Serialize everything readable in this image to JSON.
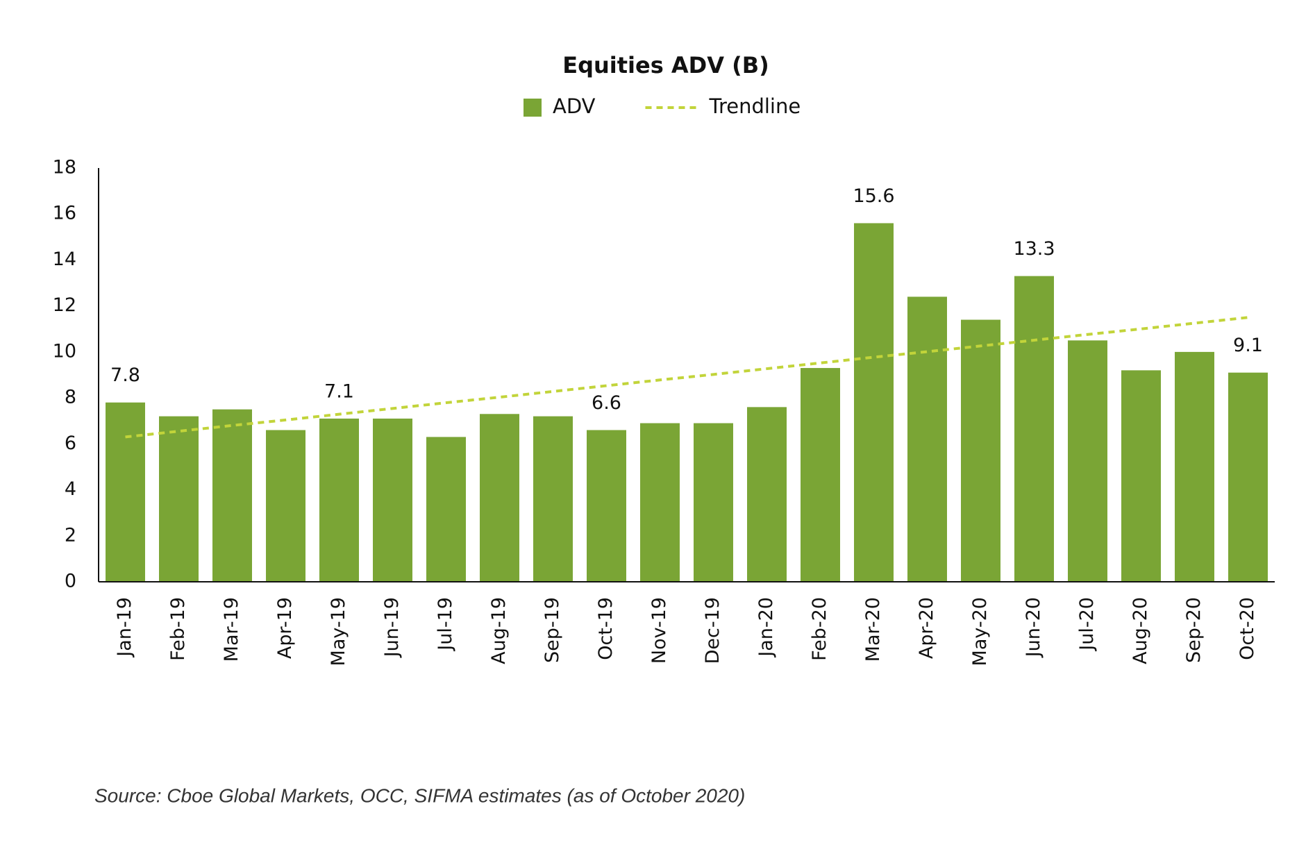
{
  "chart_data": {
    "type": "bar",
    "title": "Equities ADV (B)",
    "categories": [
      "Jan-19",
      "Feb-19",
      "Mar-19",
      "Apr-19",
      "May-19",
      "Jun-19",
      "Jul-19",
      "Aug-19",
      "Sep-19",
      "Oct-19",
      "Nov-19",
      "Dec-19",
      "Jan-20",
      "Feb-20",
      "Mar-20",
      "Apr-20",
      "May-20",
      "Jun-20",
      "Jul-20",
      "Aug-20",
      "Sep-20",
      "Oct-20"
    ],
    "series": [
      {
        "name": "ADV",
        "type": "bar",
        "color": "#7aa535",
        "values": [
          7.8,
          7.2,
          7.5,
          6.6,
          7.1,
          7.1,
          6.3,
          7.3,
          7.2,
          6.6,
          6.9,
          6.9,
          7.6,
          9.3,
          15.6,
          12.4,
          11.4,
          13.3,
          10.5,
          9.2,
          10.0,
          9.1
        ],
        "value_labels": [
          "7.8",
          null,
          null,
          null,
          "7.1",
          null,
          null,
          null,
          null,
          "6.6",
          null,
          null,
          null,
          null,
          "15.6",
          null,
          null,
          "13.3",
          null,
          null,
          null,
          "9.1"
        ]
      },
      {
        "name": "Trendline",
        "type": "line",
        "color": "#c2d43a",
        "values": [
          6.3,
          6.55,
          6.8,
          7.04,
          7.29,
          7.54,
          7.79,
          8.03,
          8.28,
          8.53,
          8.78,
          9.02,
          9.27,
          9.52,
          9.77,
          10.01,
          10.26,
          10.51,
          10.76,
          11.0,
          11.25,
          11.5
        ]
      }
    ],
    "ylim": [
      0,
      18
    ],
    "yticks": [
      0,
      2,
      4,
      6,
      8,
      10,
      12,
      14,
      16,
      18
    ],
    "grid": false,
    "legend": "top",
    "source": "Source: Cboe Global Markets, OCC, SIFMA estimates (as of October 2020)"
  }
}
